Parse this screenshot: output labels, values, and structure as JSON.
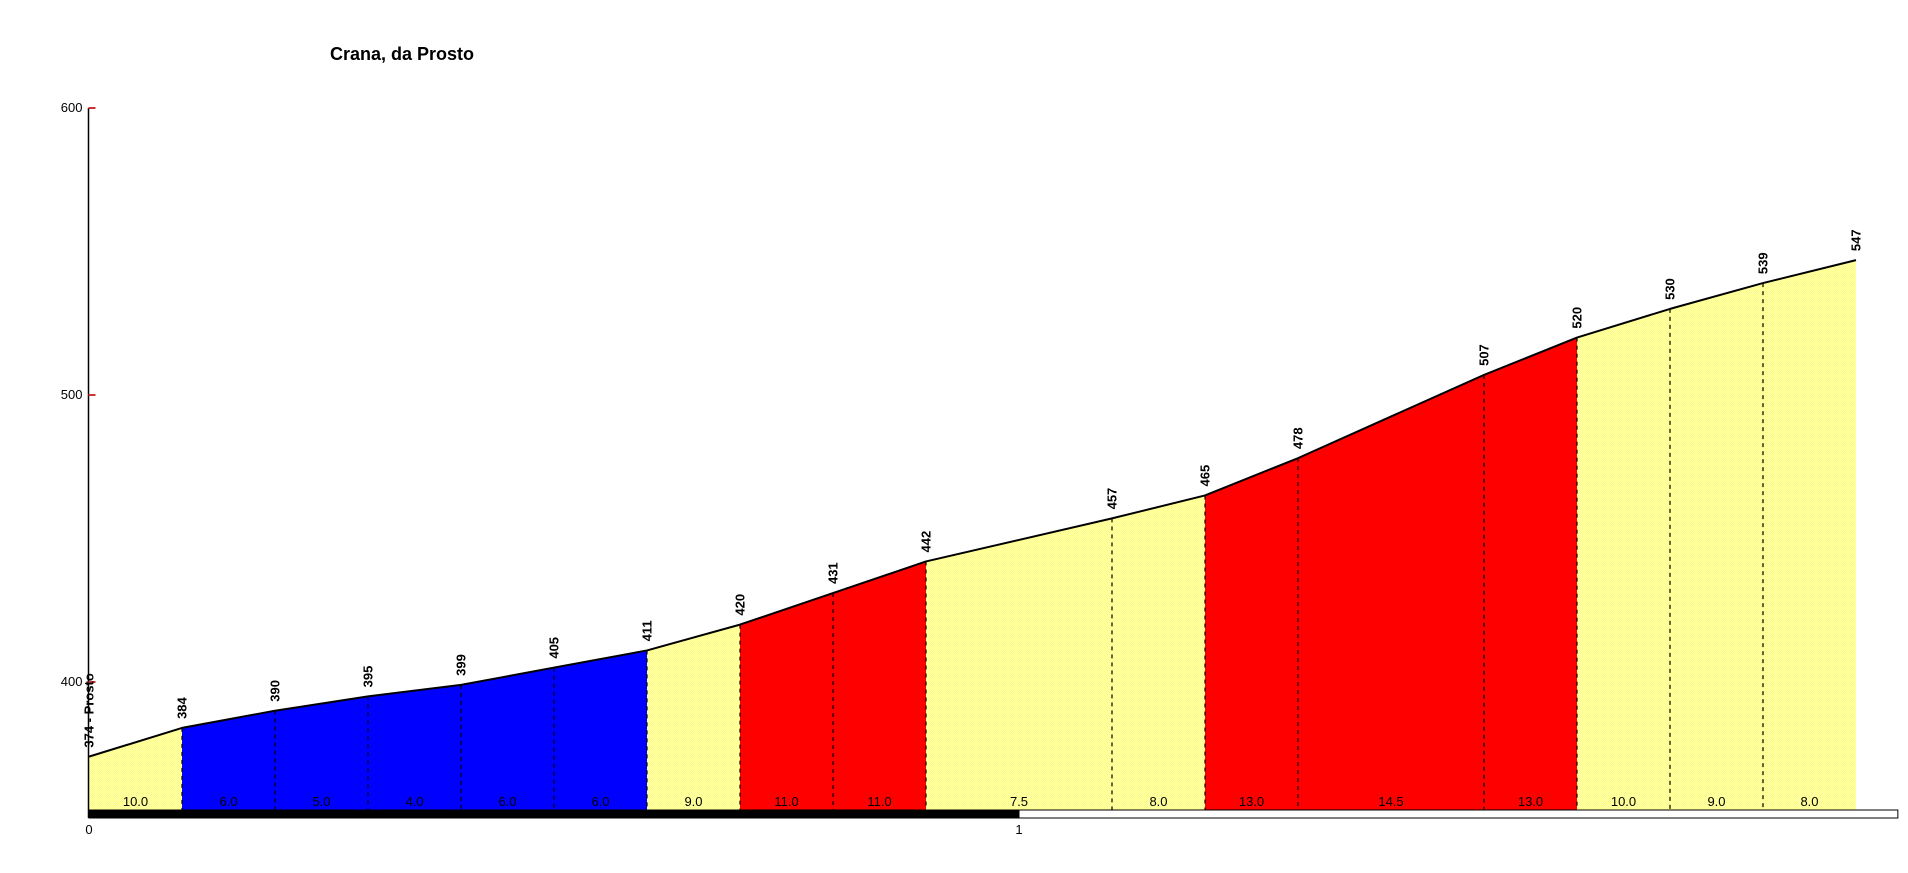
{
  "chart_data": {
    "type": "area",
    "title": "Crana, da Prosto",
    "xlabel": "",
    "ylabel": "",
    "x_unit": "km",
    "y_unit": "m",
    "xlim_km": [
      0,
      1.9
    ],
    "ylim_elev": [
      400,
      600
    ],
    "grid": false,
    "legend": "none",
    "x_ticks": [
      {
        "km": 0,
        "label": "0"
      },
      {
        "km": 1,
        "label": "1"
      }
    ],
    "y_ticks": [
      {
        "elev": 600,
        "label": "600"
      },
      {
        "elev": 500,
        "label": "500"
      },
      {
        "elev": 400,
        "label": "400"
      }
    ],
    "start_point_label": "374 - Prosto",
    "start_elev": 374,
    "end_elev": 547,
    "total_distance_km": 1.9,
    "palette": {
      "yellow_dark": "#FFFF66",
      "yellow_light": "#FFFFCC",
      "blue": "#0000FF",
      "red": "#FF0000",
      "profile_line": "#000000",
      "axis": "#000000",
      "tick": "#CC3333",
      "text": "#000000",
      "km_bar_black": "#000000",
      "km_bar_white": "#FFFFFF"
    },
    "km_bar": [
      {
        "from_km": 0.0,
        "to_km": 1.0,
        "color_key": "km_bar_black"
      },
      {
        "from_km": 1.0,
        "to_km": 1.945,
        "color_key": "km_bar_white"
      }
    ],
    "segments": [
      {
        "from_km": 0.0,
        "to_km": 0.1,
        "from_elev": 374,
        "to_elev": 384,
        "gradient": "10.0",
        "zone": "yellow"
      },
      {
        "from_km": 0.1,
        "to_km": 0.2,
        "from_elev": 384,
        "to_elev": 390,
        "gradient": "6.0",
        "zone": "blue"
      },
      {
        "from_km": 0.2,
        "to_km": 0.3,
        "from_elev": 390,
        "to_elev": 395,
        "gradient": "5.0",
        "zone": "blue"
      },
      {
        "from_km": 0.3,
        "to_km": 0.4,
        "from_elev": 395,
        "to_elev": 399,
        "gradient": "4.0",
        "zone": "blue"
      },
      {
        "from_km": 0.4,
        "to_km": 0.5,
        "from_elev": 399,
        "to_elev": 405,
        "gradient": "6.0",
        "zone": "blue"
      },
      {
        "from_km": 0.5,
        "to_km": 0.6,
        "from_elev": 405,
        "to_elev": 411,
        "gradient": "6.0",
        "zone": "blue"
      },
      {
        "from_km": 0.6,
        "to_km": 0.7,
        "from_elev": 411,
        "to_elev": 420,
        "gradient": "9.0",
        "zone": "yellow"
      },
      {
        "from_km": 0.7,
        "to_km": 0.8,
        "from_elev": 420,
        "to_elev": 431,
        "gradient": "11.0",
        "zone": "red"
      },
      {
        "from_km": 0.8,
        "to_km": 0.9,
        "from_elev": 431,
        "to_elev": 442,
        "gradient": "11.0",
        "zone": "red"
      },
      {
        "from_km": 0.9,
        "to_km": 1.1,
        "from_elev": 442,
        "to_elev": 457,
        "gradient": "7.5",
        "zone": "yellow"
      },
      {
        "from_km": 1.1,
        "to_km": 1.2,
        "from_elev": 457,
        "to_elev": 465,
        "gradient": "8.0",
        "zone": "yellow"
      },
      {
        "from_km": 1.2,
        "to_km": 1.3,
        "from_elev": 465,
        "to_elev": 478,
        "gradient": "13.0",
        "zone": "red"
      },
      {
        "from_km": 1.3,
        "to_km": 1.5,
        "from_elev": 478,
        "to_elev": 507,
        "gradient": "14.5",
        "zone": "red"
      },
      {
        "from_km": 1.5,
        "to_km": 1.6,
        "from_elev": 507,
        "to_elev": 520,
        "gradient": "13.0",
        "zone": "red"
      },
      {
        "from_km": 1.6,
        "to_km": 1.7,
        "from_elev": 520,
        "to_elev": 530,
        "gradient": "10.0",
        "zone": "yellow"
      },
      {
        "from_km": 1.7,
        "to_km": 1.8,
        "from_elev": 530,
        "to_elev": 539,
        "gradient": "9.0",
        "zone": "yellow"
      },
      {
        "from_km": 1.8,
        "to_km": 1.9,
        "from_elev": 539,
        "to_elev": 547,
        "gradient": "8.0",
        "zone": "yellow"
      }
    ]
  }
}
